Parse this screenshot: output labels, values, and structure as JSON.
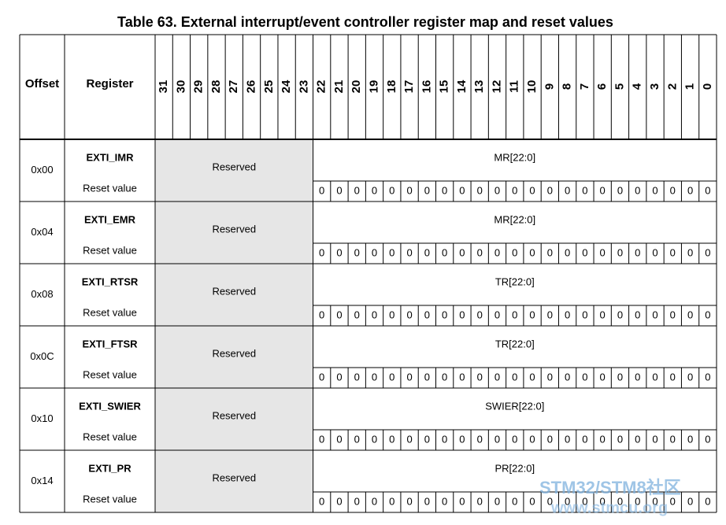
{
  "title": "Table 63. External interrupt/event controller register map and reset values",
  "header": {
    "offset": "Offset",
    "register": "Register",
    "bits": [
      "31",
      "30",
      "29",
      "28",
      "27",
      "26",
      "25",
      "24",
      "23",
      "22",
      "21",
      "20",
      "19",
      "18",
      "17",
      "16",
      "15",
      "14",
      "13",
      "12",
      "11",
      "10",
      "9",
      "8",
      "7",
      "6",
      "5",
      "4",
      "3",
      "2",
      "1",
      "0"
    ]
  },
  "rows": [
    {
      "offset": "0x00",
      "register": "EXTI_IMR",
      "reserved": "Reserved",
      "field": "MR[22:0]",
      "reset_label": "Reset value",
      "reset_values": [
        0,
        0,
        0,
        0,
        0,
        0,
        0,
        0,
        0,
        0,
        0,
        0,
        0,
        0,
        0,
        0,
        0,
        0,
        0,
        0,
        0,
        0,
        0
      ]
    },
    {
      "offset": "0x04",
      "register": "EXTI_EMR",
      "reserved": "Reserved",
      "field": "MR[22:0]",
      "reset_label": "Reset value",
      "reset_values": [
        0,
        0,
        0,
        0,
        0,
        0,
        0,
        0,
        0,
        0,
        0,
        0,
        0,
        0,
        0,
        0,
        0,
        0,
        0,
        0,
        0,
        0,
        0
      ]
    },
    {
      "offset": "0x08",
      "register": "EXTI_RTSR",
      "reserved": "Reserved",
      "field": "TR[22:0]",
      "reset_label": "Reset value",
      "reset_values": [
        0,
        0,
        0,
        0,
        0,
        0,
        0,
        0,
        0,
        0,
        0,
        0,
        0,
        0,
        0,
        0,
        0,
        0,
        0,
        0,
        0,
        0,
        0
      ]
    },
    {
      "offset": "0x0C",
      "register": "EXTI_FTSR",
      "reserved": "Reserved",
      "field": "TR[22:0]",
      "reset_label": "Reset value",
      "reset_values": [
        0,
        0,
        0,
        0,
        0,
        0,
        0,
        0,
        0,
        0,
        0,
        0,
        0,
        0,
        0,
        0,
        0,
        0,
        0,
        0,
        0,
        0,
        0
      ]
    },
    {
      "offset": "0x10",
      "register": "EXTI_SWIER",
      "reserved": "Reserved",
      "field": "SWIER[22:0]",
      "reset_label": "Reset value",
      "reset_values": [
        0,
        0,
        0,
        0,
        0,
        0,
        0,
        0,
        0,
        0,
        0,
        0,
        0,
        0,
        0,
        0,
        0,
        0,
        0,
        0,
        0,
        0,
        0
      ]
    },
    {
      "offset": "0x14",
      "register": "EXTI_PR",
      "reserved": "Reserved",
      "field": "PR[22:0]",
      "reset_label": "Reset value",
      "reset_values": [
        0,
        0,
        0,
        0,
        0,
        0,
        0,
        0,
        0,
        0,
        0,
        0,
        0,
        0,
        0,
        0,
        0,
        0,
        0,
        0,
        0,
        0,
        0
      ]
    }
  ],
  "watermark": {
    "brand": "STM32/STM8社区",
    "url": "www.stmcu.org"
  }
}
